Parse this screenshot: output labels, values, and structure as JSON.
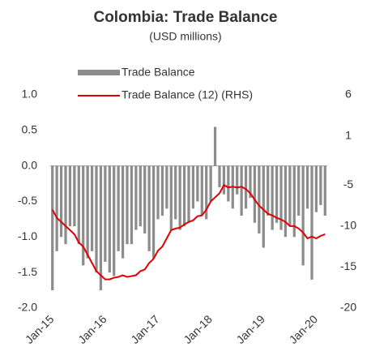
{
  "chart_data": {
    "type": "bar_line",
    "title": "Colombia: Trade Balance",
    "subtitle": "(USD millions)",
    "categories": [
      "Jan-15",
      null,
      null,
      null,
      null,
      null,
      null,
      null,
      null,
      null,
      null,
      null,
      "Jan-16",
      null,
      null,
      null,
      null,
      null,
      null,
      null,
      null,
      null,
      null,
      null,
      "Jan-17",
      null,
      null,
      null,
      null,
      null,
      null,
      null,
      null,
      null,
      null,
      null,
      "Jan-18",
      null,
      null,
      null,
      null,
      null,
      null,
      null,
      null,
      null,
      null,
      null,
      "Jan-19",
      null,
      null,
      null,
      null,
      null,
      null,
      null,
      null,
      null,
      null,
      null,
      "Jan-20",
      null,
      null
    ],
    "series": [
      {
        "name": "Trade Balance",
        "color": "#8c8c8c",
        "values": [
          -1.75,
          -1.2,
          -1.0,
          -1.1,
          -0.85,
          -0.85,
          -1.1,
          -1.4,
          -1.3,
          -1.2,
          -1.5,
          -1.75,
          -1.35,
          -1.5,
          -1.55,
          -1.2,
          -1.3,
          -1.1,
          -1.1,
          -0.9,
          -0.85,
          -0.95,
          -1.2,
          -1.3,
          -0.75,
          -0.7,
          -0.6,
          -0.9,
          -0.75,
          -0.9,
          -0.85,
          -0.8,
          -0.6,
          -0.5,
          -0.7,
          -0.75,
          -0.5,
          0.55,
          -0.3,
          -0.4,
          -0.5,
          -0.6,
          -0.4,
          -0.7,
          -0.6,
          -0.45,
          -0.8,
          -0.95,
          -1.15,
          -0.7,
          -0.9,
          -0.8,
          -0.9,
          -1.0,
          -0.85,
          -1.0,
          -0.7,
          -1.4,
          -0.6,
          -1.6,
          -0.65,
          -0.55,
          -0.7
        ]
      },
      {
        "name": "Trade Balance (12) (RHS)",
        "color": "#e00000",
        "axis": "y2",
        "values": [
          -8,
          -9,
          -9.5,
          -10,
          -10.5,
          -11,
          -12,
          -12.5,
          -13.5,
          -14.5,
          -15.5,
          -16,
          -16.5,
          -16.5,
          -16.3,
          -16.2,
          -16,
          -16.2,
          -16.1,
          -16,
          -15.5,
          -15.3,
          -14.5,
          -14,
          -13,
          -12.5,
          -11.5,
          -10.5,
          -10.3,
          -10.2,
          -9.8,
          -9.5,
          -9.3,
          -8.8,
          -8.7,
          -8,
          -7,
          -6.5,
          -6,
          -5,
          -5.3,
          -5.2,
          -5.3,
          -5.2,
          -5.5,
          -6,
          -6.8,
          -7.5,
          -8,
          -8.5,
          -8.7,
          -9,
          -9.2,
          -9.5,
          -10,
          -10,
          -10.3,
          -10.8,
          -11.5,
          -11.3,
          -11.5,
          -11.2,
          -11
        ]
      }
    ],
    "ylim": [
      -2,
      1
    ],
    "yticks": [
      {
        "value": 1,
        "label": "1.0"
      },
      0.5,
      {
        "value": 0,
        "label": "0.0"
      },
      -0.5,
      {
        "value": -1,
        "label": "-1.0"
      },
      -1.5,
      {
        "value": -2,
        "label": "-2.0"
      }
    ],
    "y2lim": [
      -20,
      6
    ],
    "y2ticks": [
      6,
      1,
      -5,
      -10,
      -15,
      -20
    ]
  }
}
